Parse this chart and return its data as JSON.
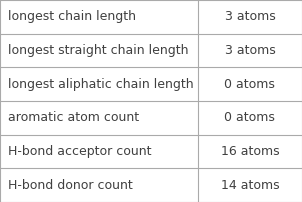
{
  "rows": [
    {
      "label": "longest chain length",
      "value": "3 atoms"
    },
    {
      "label": "longest straight chain length",
      "value": "3 atoms"
    },
    {
      "label": "longest aliphatic chain length",
      "value": "0 atoms"
    },
    {
      "label": "aromatic atom count",
      "value": "0 atoms"
    },
    {
      "label": "H-bond acceptor count",
      "value": "16 atoms"
    },
    {
      "label": "H-bond donor count",
      "value": "14 atoms"
    }
  ],
  "bg_color": "#ffffff",
  "border_color": "#aaaaaa",
  "text_color": "#404040",
  "font_size": 9.0,
  "col_split": 0.655,
  "fig_width": 3.02,
  "fig_height": 2.02,
  "dpi": 100
}
